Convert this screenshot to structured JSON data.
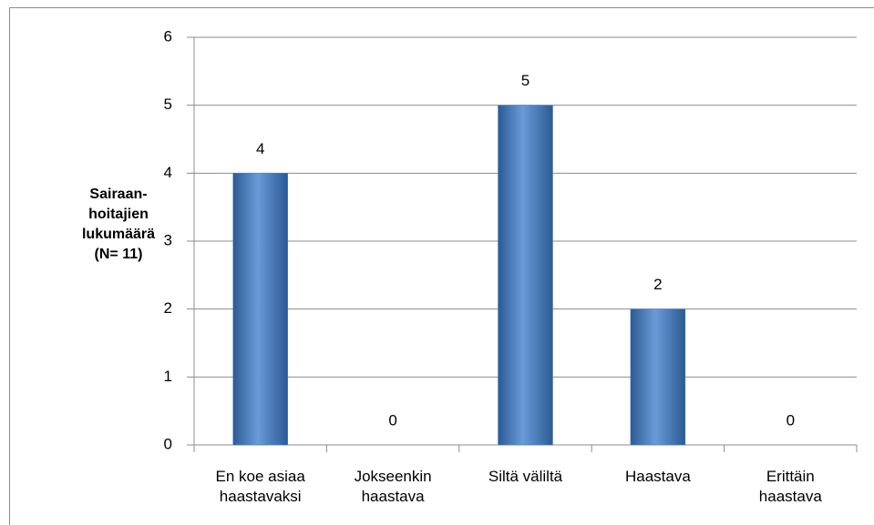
{
  "chart_data": {
    "type": "bar",
    "ylabel": "Sairaan-hoitajien lukumäärä (N= 11)",
    "categories": [
      "En koe asiaa haastavaksi",
      "Jokseenkin haastava",
      "Siltä väliltä",
      "Haastava",
      "Erittäin haastava"
    ],
    "values": [
      4,
      0,
      5,
      2,
      0
    ],
    "color": "#4f81bd",
    "ylim": [
      0,
      6
    ],
    "yticks": [
      0,
      1,
      2,
      3,
      4,
      5,
      6
    ],
    "grid": true
  }
}
